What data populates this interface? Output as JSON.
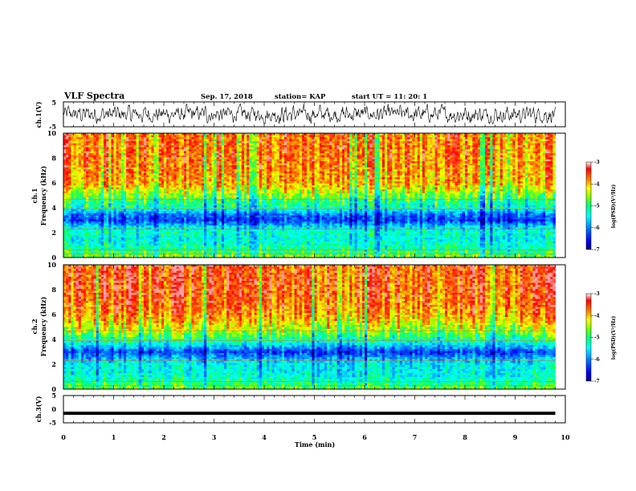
{
  "header": {
    "title": "VLF Spectra",
    "date": "Sep. 17, 2018",
    "station": "station= KAP",
    "start": "start UT =   11: 20: 1"
  },
  "chart_data": [
    {
      "type": "line",
      "panel": "ch1-waveform",
      "ylabel": "ch.1(V)",
      "ylim": [
        -5,
        5
      ],
      "yticks": [
        "5",
        "-5"
      ],
      "xlim": [
        0,
        10
      ],
      "x_end": 9.8,
      "description_values": "noisy waveform oscillating roughly between -3.5 and +4 V"
    },
    {
      "type": "heatmap",
      "panel": "ch1-spectrogram",
      "ylabel_line1": "ch.1",
      "ylabel_line2": "Frequency (kHz)",
      "ylim": [
        0,
        10
      ],
      "yticks": [
        "0",
        "2",
        "4",
        "6",
        "8",
        "10"
      ],
      "xlim": [
        0,
        10
      ],
      "x_end": 9.8,
      "colorbar": {
        "label": "log(PSD)(V²/Hz)",
        "range": [
          -7,
          -3
        ],
        "ticks": [
          "-3",
          "-4",
          "-5",
          "-6",
          "-7"
        ]
      },
      "profile_freq_khz": [
        0,
        0.5,
        1,
        1.5,
        2,
        2.5,
        3,
        3.5,
        4,
        4.5,
        5,
        5.5,
        6,
        7,
        8,
        9,
        10
      ],
      "profile_log_psd": [
        -4.6,
        -5.0,
        -5.2,
        -5.4,
        -5.2,
        -5.6,
        -6.3,
        -6.0,
        -5.2,
        -5.0,
        -4.6,
        -4.2,
        -3.9,
        -3.8,
        -3.7,
        -3.7,
        -3.7
      ]
    },
    {
      "type": "heatmap",
      "panel": "ch2-spectrogram",
      "ylabel_line1": "ch.2",
      "ylabel_line2": "Frequency (kHz)",
      "ylim": [
        0,
        10
      ],
      "yticks": [
        "0",
        "2",
        "4",
        "6",
        "8",
        "10"
      ],
      "xlim": [
        0,
        10
      ],
      "x_end": 9.8,
      "colorbar": {
        "label": "log(PSD)(V²/Hz)",
        "range": [
          -7,
          -3
        ],
        "ticks": [
          "-3",
          "-4",
          "-5",
          "-6",
          "-7"
        ]
      },
      "profile_freq_khz": [
        0,
        0.5,
        1,
        1.5,
        2,
        2.5,
        3,
        3.5,
        4,
        4.5,
        5,
        5.5,
        6,
        7,
        8,
        9,
        10
      ],
      "profile_log_psd": [
        -4.6,
        -5.0,
        -5.3,
        -5.4,
        -5.4,
        -5.8,
        -6.3,
        -5.6,
        -5.1,
        -4.6,
        -4.3,
        -4.0,
        -3.8,
        -3.6,
        -3.5,
        -3.5,
        -3.5
      ]
    },
    {
      "type": "line",
      "panel": "ch3-waveform",
      "ylabel": "ch.3(V)",
      "ylim": [
        -5,
        5
      ],
      "yticks": [
        "5",
        "0",
        "-5"
      ],
      "xlim": [
        0,
        10
      ],
      "x_end": 9.8,
      "constant_value": -1.5
    }
  ],
  "xaxis": {
    "label": "Time (min)",
    "ticks": [
      "0",
      "1",
      "2",
      "3",
      "4",
      "5",
      "6",
      "7",
      "8",
      "9",
      "10"
    ]
  },
  "colors": {
    "colormap": [
      "#000080",
      "#0000ff",
      "#0080ff",
      "#00ffff",
      "#00ff80",
      "#80ff00",
      "#ffff00",
      "#ff8000",
      "#ff0000",
      "#ffffff"
    ],
    "trace": "#000000"
  }
}
